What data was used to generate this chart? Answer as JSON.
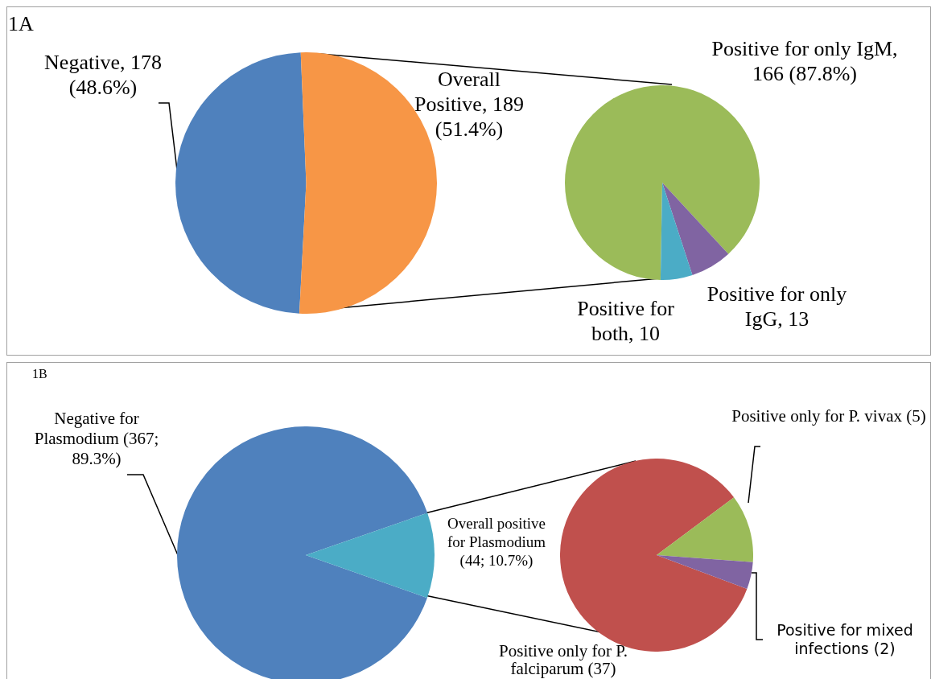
{
  "chart_data": [
    {
      "type": "pie",
      "title": "1A",
      "categories": [
        "Negative, 178 (48.6%)",
        "Overall Positive, 189 (51.4%)"
      ],
      "values": [
        178,
        189
      ],
      "colors": [
        "#4f81bd",
        "#f79646"
      ]
    },
    {
      "type": "pie",
      "categories": [
        "Positive for only IgM, 166 (87.8%)",
        "Positive for only IgG, 13",
        "Positive for both, 10"
      ],
      "values": [
        166,
        13,
        10
      ],
      "colors": [
        "#9bbb59",
        "#8064a2",
        "#4bacc6"
      ]
    },
    {
      "type": "pie",
      "title": "1B",
      "categories": [
        "Negative for Plasmodium (367; 89.3%)",
        "Overall positive for Plasmodium (44; 10.7%)"
      ],
      "values": [
        367,
        44
      ],
      "colors": [
        "#4f81bd",
        "#4bacc6"
      ]
    },
    {
      "type": "pie",
      "categories": [
        "Positive only for P. falciparum (37)",
        "Positive only for P. vivax (5)",
        "Positive for mixed infections (2)"
      ],
      "values": [
        37,
        5,
        2
      ],
      "colors": [
        "#c0504d",
        "#9bbb59",
        "#8064a2"
      ]
    }
  ]
}
